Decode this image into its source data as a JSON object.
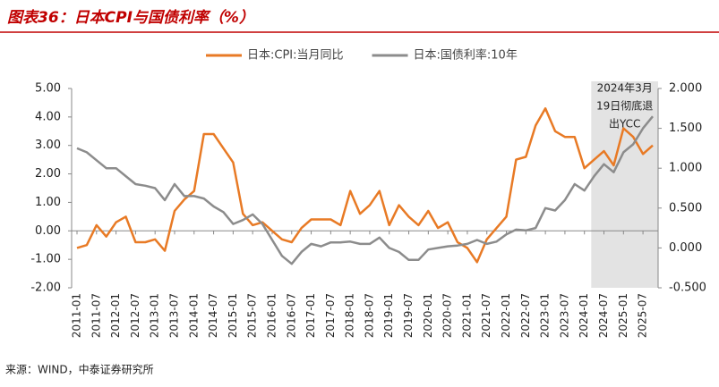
{
  "chart_data": {
    "type": "line",
    "title": "图表36：日本CPI与国债利率（%）",
    "source": "来源：WIND，中泰证券研究所",
    "annotation": [
      "2024年3月",
      "19日彻底退",
      "出YCC"
    ],
    "categories": [
      "2011-01",
      null,
      "2011-07",
      null,
      "2012-01",
      null,
      "2012-07",
      null,
      "2013-01",
      null,
      "2013-07",
      null,
      "2014-01",
      null,
      "2014-07",
      null,
      "2015-01",
      null,
      "2015-07",
      null,
      "2016-01",
      null,
      "2016-07",
      null,
      "2017-01",
      null,
      "2017-07",
      null,
      "2018-01",
      null,
      "2018-07",
      null,
      "2019-01",
      null,
      "2019-07",
      null,
      "2020-01",
      null,
      "2020-07",
      null,
      "2021-01",
      null,
      "2021-07",
      null,
      "2022-01",
      null,
      "2022-07",
      null,
      "2023-01",
      null,
      "2023-07",
      null,
      "2024-01",
      null,
      "2024-07",
      null,
      "2025-01",
      null,
      "2025-07",
      null
    ],
    "series": [
      {
        "name": "日本:CPI:当月同比",
        "color": "#e87a25",
        "axis": "y",
        "values": [
          -0.6,
          -0.5,
          0.2,
          -0.2,
          0.3,
          0.5,
          -0.4,
          -0.4,
          -0.3,
          -0.7,
          0.7,
          1.1,
          1.4,
          3.4,
          3.4,
          2.9,
          2.4,
          0.6,
          0.2,
          0.3,
          0.0,
          -0.3,
          -0.4,
          0.1,
          0.4,
          0.4,
          0.4,
          0.2,
          1.4,
          0.6,
          0.9,
          1.4,
          0.2,
          0.9,
          0.5,
          0.2,
          0.7,
          0.1,
          0.3,
          -0.4,
          -0.6,
          -1.1,
          -0.3,
          0.1,
          0.5,
          2.5,
          2.6,
          3.7,
          4.3,
          3.5,
          3.3,
          3.3,
          2.2,
          2.5,
          2.8,
          2.3,
          3.6,
          3.3,
          2.7,
          3.0
        ]
      },
      {
        "name": "日本:国债利率:10年",
        "color": "#8c8c8c",
        "axis": "y2",
        "values": [
          1.25,
          1.2,
          1.1,
          1.0,
          1.0,
          0.9,
          0.8,
          0.78,
          0.75,
          0.6,
          0.8,
          0.65,
          0.65,
          0.62,
          0.52,
          0.45,
          0.3,
          0.35,
          0.42,
          0.3,
          0.1,
          -0.1,
          -0.2,
          -0.05,
          0.05,
          0.02,
          0.07,
          0.07,
          0.08,
          0.05,
          0.05,
          0.13,
          0.0,
          -0.05,
          -0.15,
          -0.15,
          -0.02,
          0.0,
          0.02,
          0.03,
          0.05,
          0.1,
          0.05,
          0.08,
          0.17,
          0.23,
          0.22,
          0.25,
          0.5,
          0.47,
          0.6,
          0.8,
          0.72,
          0.9,
          1.05,
          0.95,
          1.2,
          1.3,
          1.5,
          1.65
        ]
      }
    ],
    "ylim": [
      -2,
      5
    ],
    "yticks": [
      {
        "value": -2,
        "label": "-2.00"
      },
      {
        "value": -1,
        "label": "-1.00"
      },
      {
        "value": 0,
        "label": "0.00"
      },
      {
        "value": 1,
        "label": "1.00"
      },
      {
        "value": 2,
        "label": "2.00"
      },
      {
        "value": 3,
        "label": "3.00"
      },
      {
        "value": 4,
        "label": "4.00"
      },
      {
        "value": 5,
        "label": "5.00"
      }
    ],
    "y2lim": [
      -0.5,
      2.0
    ],
    "y2ticks": [
      {
        "value": -0.5,
        "label": "-0.500"
      },
      {
        "value": 0,
        "label": "0.000"
      },
      {
        "value": 0.5,
        "label": "0.500"
      },
      {
        "value": 1,
        "label": "1.000"
      },
      {
        "value": 1.5,
        "label": "1.500"
      },
      {
        "value": 2,
        "label": "2.000"
      }
    ]
  }
}
